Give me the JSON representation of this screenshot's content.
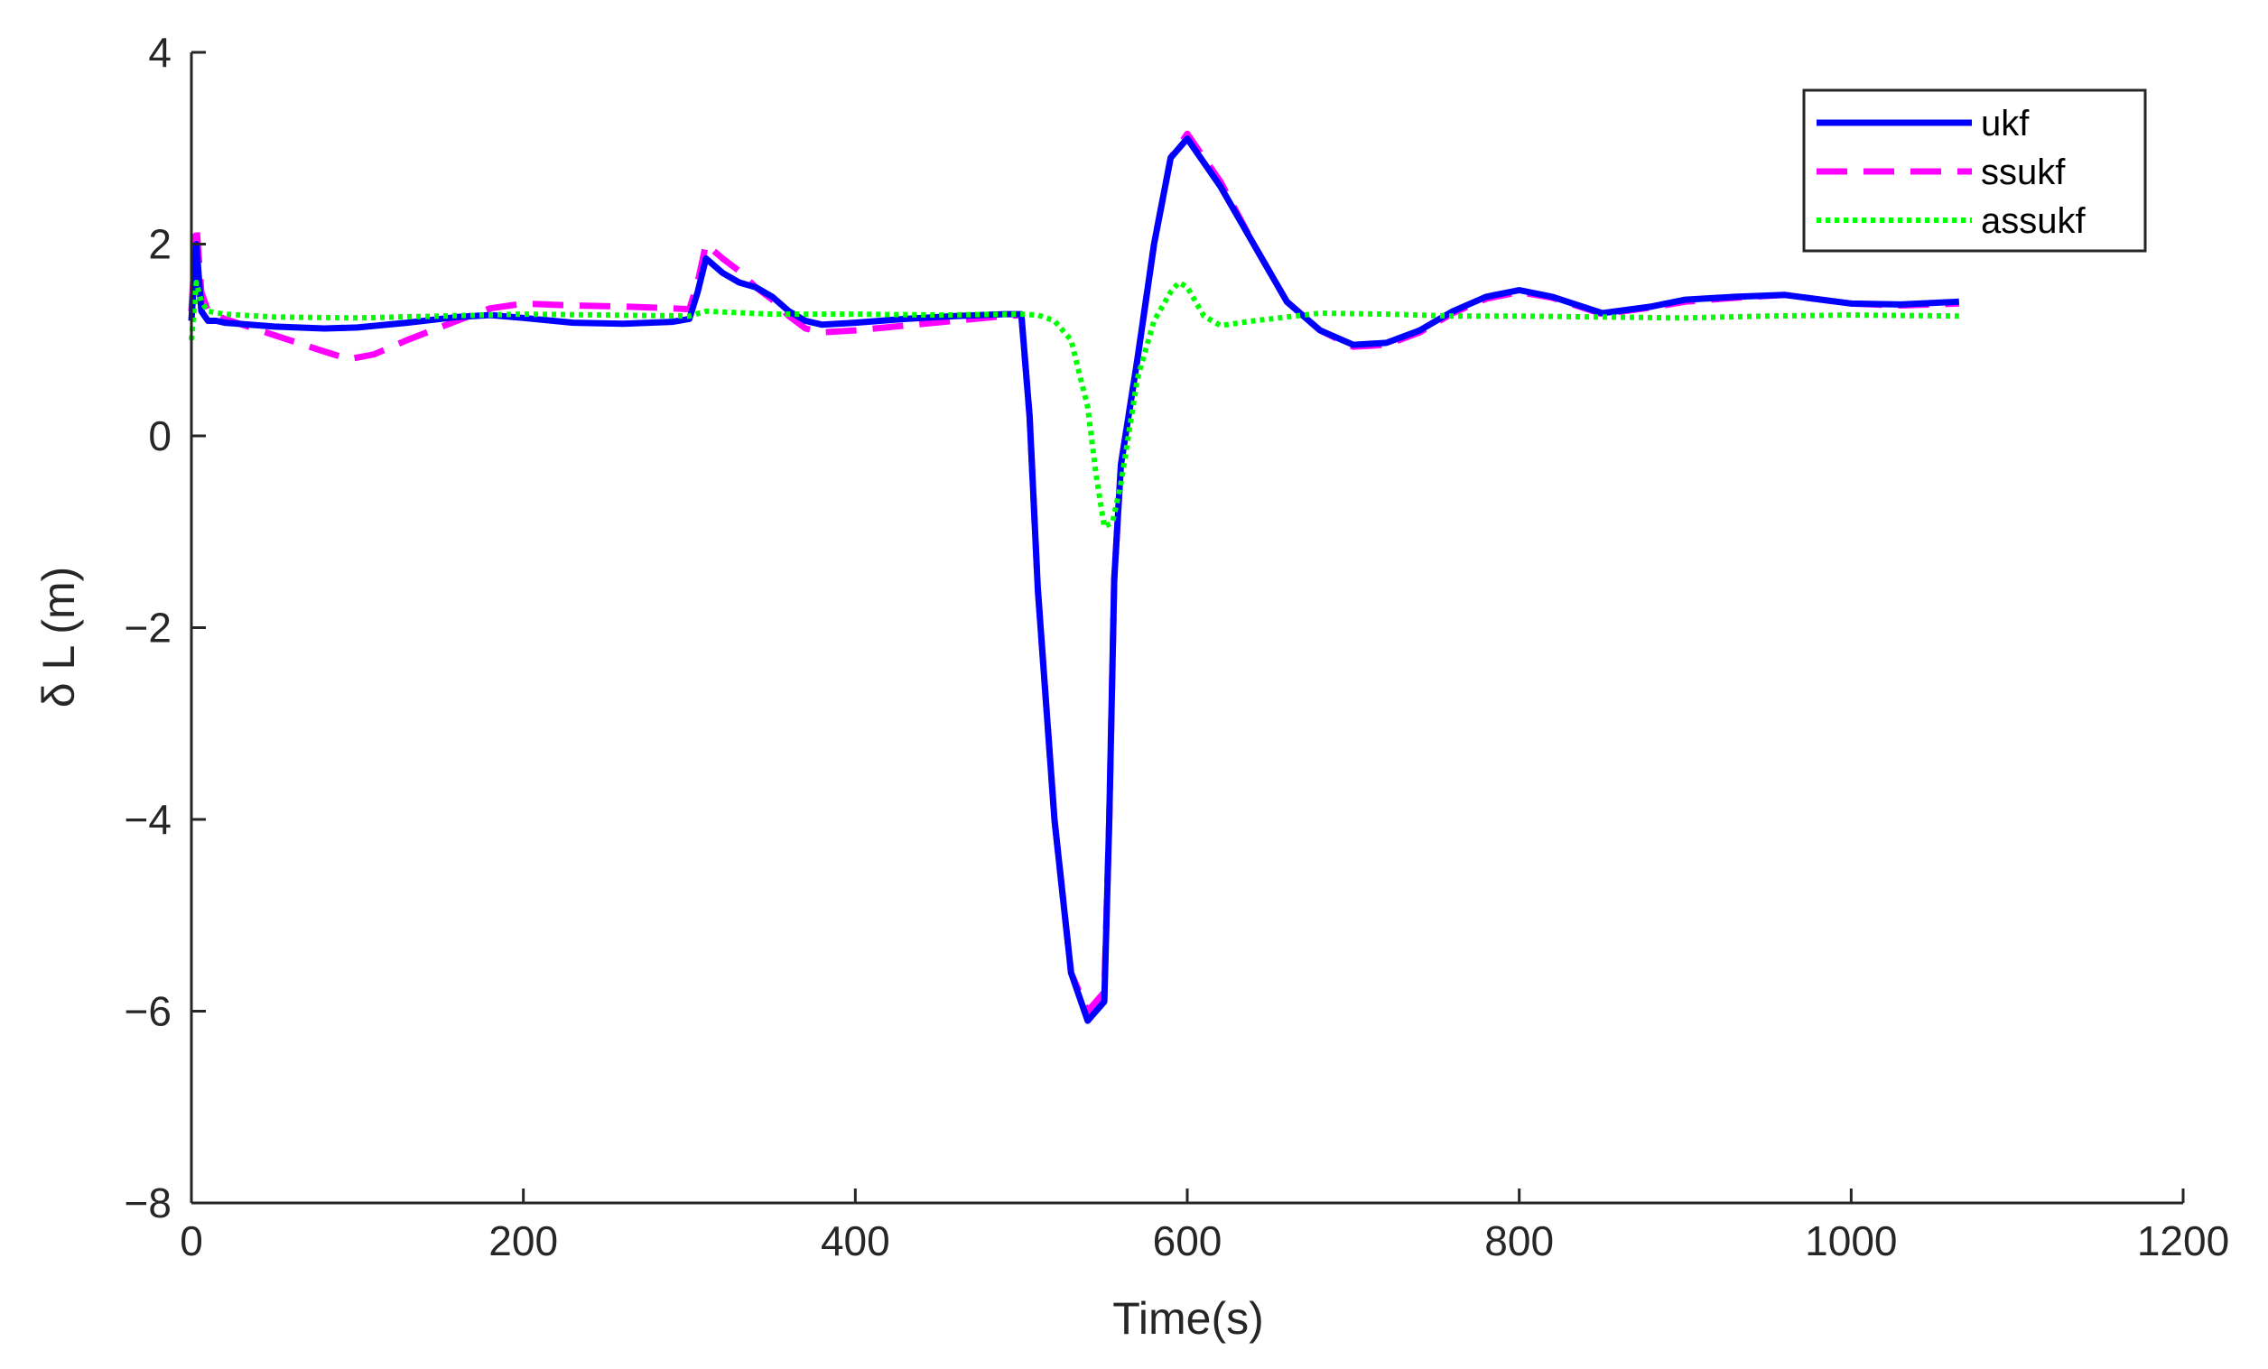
{
  "chart_data": {
    "type": "line",
    "title": "",
    "xlabel": "Time(s)",
    "ylabel": "δ L (m)",
    "xlim": [
      0,
      1200
    ],
    "ylim": [
      -8,
      4
    ],
    "xticks": [
      0,
      200,
      400,
      600,
      800,
      1000,
      1200
    ],
    "yticks": [
      4,
      2,
      0,
      -2,
      -4,
      -6,
      -8
    ],
    "xtick_labels": [
      "0",
      "200",
      "400",
      "600",
      "800",
      "1000",
      "1200"
    ],
    "ytick_labels": [
      "4",
      "2",
      "0",
      "−2",
      "−4",
      "−6",
      "−8"
    ],
    "grid": false,
    "legend": "top-right",
    "series": [
      {
        "name": "ukf",
        "color": "#0000FF",
        "style": "solid",
        "x": [
          0,
          3,
          6,
          10,
          15,
          20,
          50,
          80,
          100,
          130,
          160,
          180,
          200,
          230,
          260,
          290,
          300,
          305,
          310,
          320,
          330,
          340,
          350,
          360,
          370,
          380,
          400,
          430,
          460,
          490,
          500,
          505,
          510,
          520,
          530,
          540,
          550,
          553,
          556,
          560,
          570,
          580,
          590,
          600,
          620,
          640,
          660,
          680,
          700,
          720,
          740,
          760,
          780,
          800,
          820,
          850,
          880,
          900,
          930,
          960,
          1000,
          1030,
          1065
        ],
        "y": [
          1.2,
          2.0,
          1.3,
          1.2,
          1.2,
          1.18,
          1.14,
          1.12,
          1.13,
          1.18,
          1.24,
          1.26,
          1.23,
          1.18,
          1.17,
          1.19,
          1.22,
          1.5,
          1.85,
          1.7,
          1.6,
          1.55,
          1.45,
          1.3,
          1.2,
          1.16,
          1.18,
          1.22,
          1.25,
          1.27,
          1.27,
          0.2,
          -1.6,
          -4.0,
          -5.6,
          -6.1,
          -5.9,
          -4.0,
          -1.5,
          -0.3,
          0.8,
          2.0,
          2.9,
          3.1,
          2.6,
          2.0,
          1.4,
          1.1,
          0.95,
          0.97,
          1.1,
          1.3,
          1.45,
          1.52,
          1.45,
          1.28,
          1.35,
          1.42,
          1.45,
          1.47,
          1.38,
          1.37,
          1.4
        ]
      },
      {
        "name": "ssukf",
        "color": "#FF00FF",
        "style": "dashed",
        "x": [
          0,
          3,
          6,
          10,
          20,
          50,
          80,
          95,
          110,
          130,
          160,
          180,
          200,
          230,
          260,
          290,
          300,
          305,
          310,
          320,
          330,
          340,
          350,
          360,
          370,
          380,
          400,
          430,
          460,
          490,
          500,
          505,
          510,
          520,
          530,
          540,
          550,
          553,
          556,
          560,
          570,
          580,
          590,
          600,
          620,
          640,
          660,
          680,
          700,
          720,
          740,
          760,
          780,
          800,
          820,
          850,
          880,
          900,
          930,
          960,
          1000,
          1030,
          1065
        ],
        "y": [
          1.3,
          2.2,
          1.5,
          1.3,
          1.22,
          1.05,
          0.88,
          0.8,
          0.85,
          1.0,
          1.2,
          1.33,
          1.38,
          1.36,
          1.35,
          1.33,
          1.32,
          1.6,
          2.0,
          1.85,
          1.72,
          1.55,
          1.42,
          1.25,
          1.12,
          1.08,
          1.1,
          1.15,
          1.2,
          1.25,
          1.26,
          0.2,
          -1.6,
          -4.0,
          -5.6,
          -6.0,
          -5.8,
          -4.0,
          -1.5,
          -0.3,
          0.8,
          2.0,
          2.9,
          3.15,
          2.65,
          2.0,
          1.4,
          1.1,
          0.93,
          0.95,
          1.08,
          1.28,
          1.43,
          1.5,
          1.44,
          1.27,
          1.34,
          1.4,
          1.44,
          1.47,
          1.38,
          1.36,
          1.38
        ]
      },
      {
        "name": "assukf",
        "color": "#00FF00",
        "style": "dotted",
        "x": [
          0,
          3,
          6,
          10,
          20,
          50,
          100,
          150,
          200,
          250,
          300,
          310,
          350,
          400,
          450,
          500,
          510,
          520,
          530,
          540,
          545,
          550,
          555,
          560,
          570,
          580,
          590,
          595,
          600,
          610,
          620,
          640,
          680,
          720,
          760,
          800,
          850,
          900,
          950,
          1000,
          1065
        ],
        "y": [
          1.0,
          1.6,
          1.4,
          1.3,
          1.27,
          1.24,
          1.23,
          1.25,
          1.27,
          1.26,
          1.25,
          1.3,
          1.27,
          1.27,
          1.26,
          1.27,
          1.26,
          1.2,
          1.0,
          0.3,
          -0.4,
          -0.95,
          -0.9,
          -0.5,
          0.6,
          1.2,
          1.5,
          1.6,
          1.55,
          1.25,
          1.15,
          1.2,
          1.28,
          1.27,
          1.25,
          1.25,
          1.24,
          1.23,
          1.25,
          1.26,
          1.25
        ]
      }
    ]
  }
}
